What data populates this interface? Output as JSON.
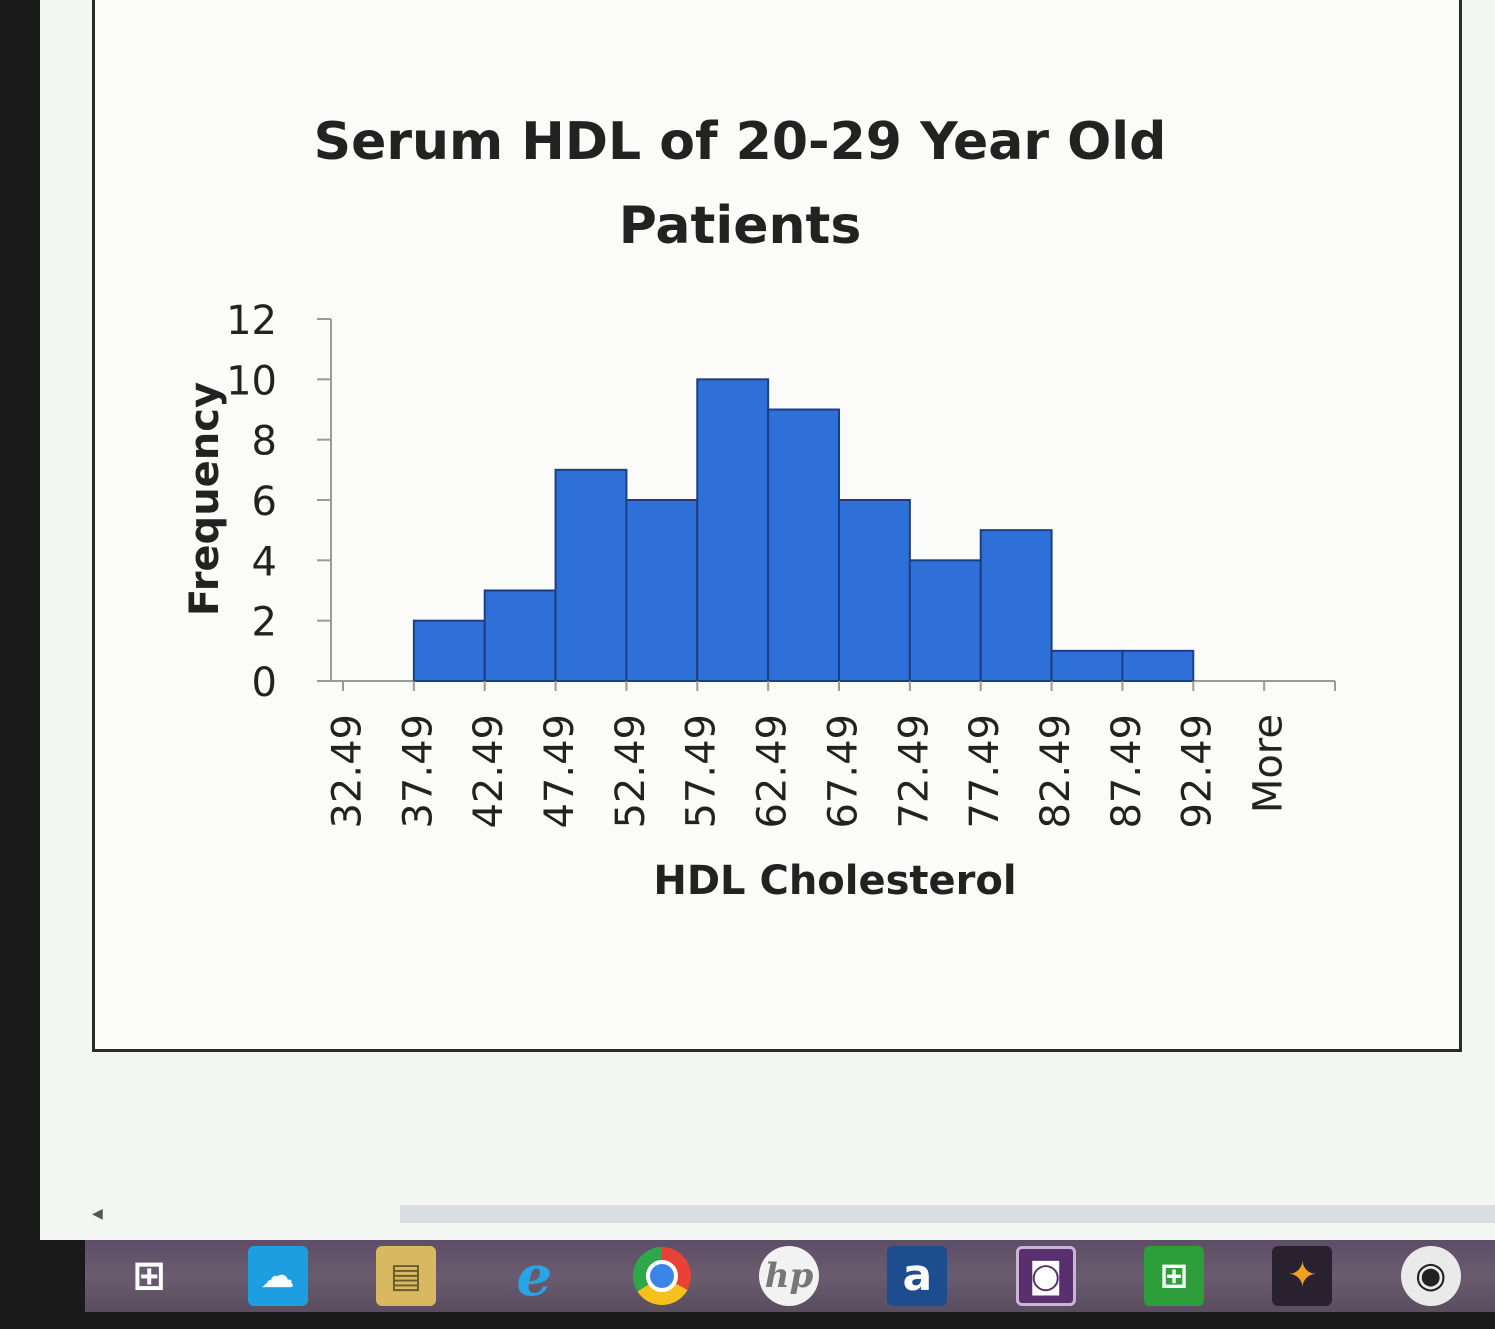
{
  "chart_data": {
    "type": "bar",
    "title": "Serum HDL of 20-29 Year Old Patients",
    "title_lines": [
      "Serum HDL of 20-29 Year Old",
      "Patients"
    ],
    "xlabel": "HDL Cholesterol",
    "ylabel": "Frequency",
    "categories": [
      "32.49",
      "37.49",
      "42.49",
      "47.49",
      "52.49",
      "57.49",
      "62.49",
      "67.49",
      "72.49",
      "77.49",
      "82.49",
      "87.49",
      "92.49",
      "More"
    ],
    "values": [
      0,
      2,
      3,
      7,
      6,
      10,
      9,
      6,
      4,
      5,
      1,
      1,
      0,
      0
    ],
    "ylim": [
      0,
      12
    ],
    "yticks": [
      "0",
      "2",
      "4",
      "6",
      "8",
      "10",
      "12"
    ],
    "bar_color": "#2f6fd8",
    "grid": false,
    "legend": "none"
  },
  "taskbar": {
    "icons": [
      "windows-start-icon",
      "weather-icon",
      "file-explorer-icon",
      "edge-icon",
      "chrome-icon",
      "hp-icon",
      "amazon-icon",
      "video-editor-icon",
      "store-icon",
      "puzzle-game-icon",
      "camera-icon"
    ]
  }
}
